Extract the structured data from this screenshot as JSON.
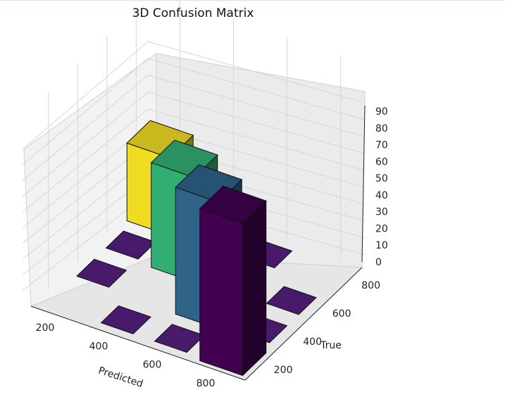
{
  "chart_data": {
    "type": "bar3d",
    "title": "3D Confusion Matrix",
    "xlabel": "Predicted",
    "ylabel": "True",
    "zlabel": "",
    "x_ticks": [
      "200",
      "400",
      "600",
      "800"
    ],
    "y_ticks": [
      "200",
      "400",
      "600",
      "800"
    ],
    "z_ticks": [
      "0",
      "10",
      "20",
      "30",
      "40",
      "50",
      "60",
      "70",
      "80",
      "90"
    ],
    "zlim": [
      0,
      90
    ],
    "colormap": "viridis",
    "bars": [
      {
        "predicted": 200,
        "true": 200,
        "value": 0,
        "color": "#440154"
      },
      {
        "predicted": 400,
        "true": 200,
        "value": 0,
        "color": "#440154"
      },
      {
        "predicted": 600,
        "true": 200,
        "value": 0,
        "color": "#440154"
      },
      {
        "predicted": 800,
        "true": 200,
        "value": 0,
        "color": "#440154"
      },
      {
        "predicted": 200,
        "true": 400,
        "value": 0,
        "color": "#440154"
      },
      {
        "predicted": 400,
        "true": 400,
        "value": 0,
        "color": "#440154"
      },
      {
        "predicted": 600,
        "true": 400,
        "value": 0,
        "color": "#440154"
      },
      {
        "predicted": 800,
        "true": 400,
        "value": 0,
        "color": "#440154"
      },
      {
        "predicted": 200,
        "true": 600,
        "value": 0,
        "color": "#440154"
      },
      {
        "predicted": 400,
        "true": 600,
        "value": 0,
        "color": "#440154"
      },
      {
        "predicted": 600,
        "true": 600,
        "value": 0,
        "color": "#440154"
      },
      {
        "predicted": 800,
        "true": 600,
        "value": 0,
        "color": "#440154"
      },
      {
        "predicted": 200,
        "true": 800,
        "value": 0,
        "color": "#440154"
      },
      {
        "predicted": 400,
        "true": 800,
        "value": 0,
        "color": "#440154"
      },
      {
        "predicted": 600,
        "true": 800,
        "value": 0,
        "color": "#440154"
      },
      {
        "predicted": 800,
        "true": 800,
        "value": 0,
        "color": "#440154"
      },
      {
        "predicted": 200,
        "true": 800,
        "value": 0,
        "color": "#440154"
      }
    ],
    "diagonal_bars": [
      {
        "predicted": 200,
        "true": 800,
        "value": 46,
        "color": "#fde725"
      },
      {
        "predicted": 400,
        "true": 800,
        "value": 62,
        "color": "#35b779"
      },
      {
        "predicted": 600,
        "true": 800,
        "value": 75,
        "color": "#31688e"
      },
      {
        "predicted": 800,
        "true": 800,
        "value": 90,
        "color": "#440154"
      }
    ],
    "grid": true
  }
}
